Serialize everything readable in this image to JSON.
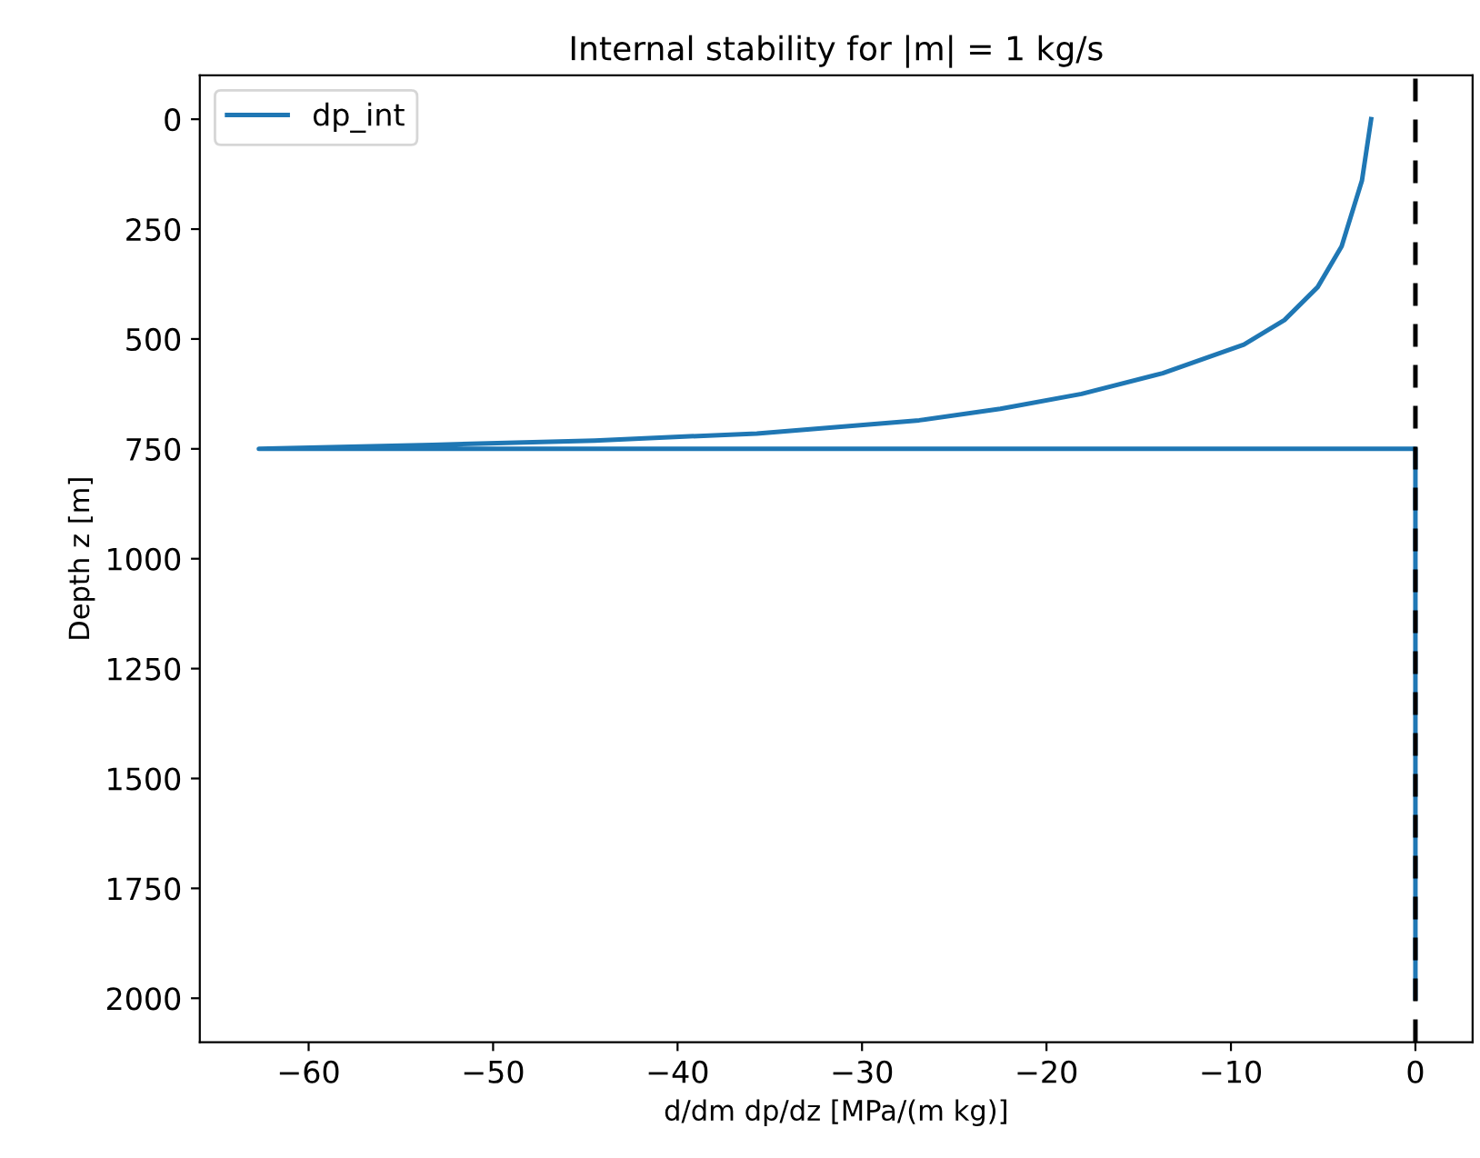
{
  "chart_data": {
    "type": "line",
    "title": "Internal stability for |m| = 1 kg/s",
    "xlabel": "d/dm dp/dz [MPa/(m kg)]",
    "ylabel": "Depth z [m]",
    "series": [
      {
        "name": "dp_int",
        "color": "#1f77b4",
        "line_style": "solid",
        "x": [
          -2.4,
          -2.9,
          -4.0,
          -5.3,
          -7.1,
          -9.3,
          -13.7,
          -18.1,
          -22.5,
          -26.9,
          -35.7,
          -44.5,
          -53.3,
          -62.7,
          0,
          0
        ],
        "values": [
          0,
          140,
          289,
          382,
          457,
          513,
          578,
          625,
          659,
          685,
          715,
          731,
          741,
          750,
          750,
          2000
        ]
      }
    ],
    "ref_lines": [
      {
        "axis": "x",
        "value": 0,
        "color": "#000000",
        "line_style": "dashed"
      }
    ],
    "xlim": [
      -65.9,
      3.1
    ],
    "xticks": [
      -60,
      -50,
      -40,
      -30,
      -20,
      -10,
      0
    ],
    "ylim": [
      2100,
      -100
    ],
    "yticks": [
      0,
      250,
      500,
      750,
      1000,
      1250,
      1500,
      1750,
      2000
    ],
    "grid": false,
    "legend": "top left",
    "marker": "none"
  }
}
